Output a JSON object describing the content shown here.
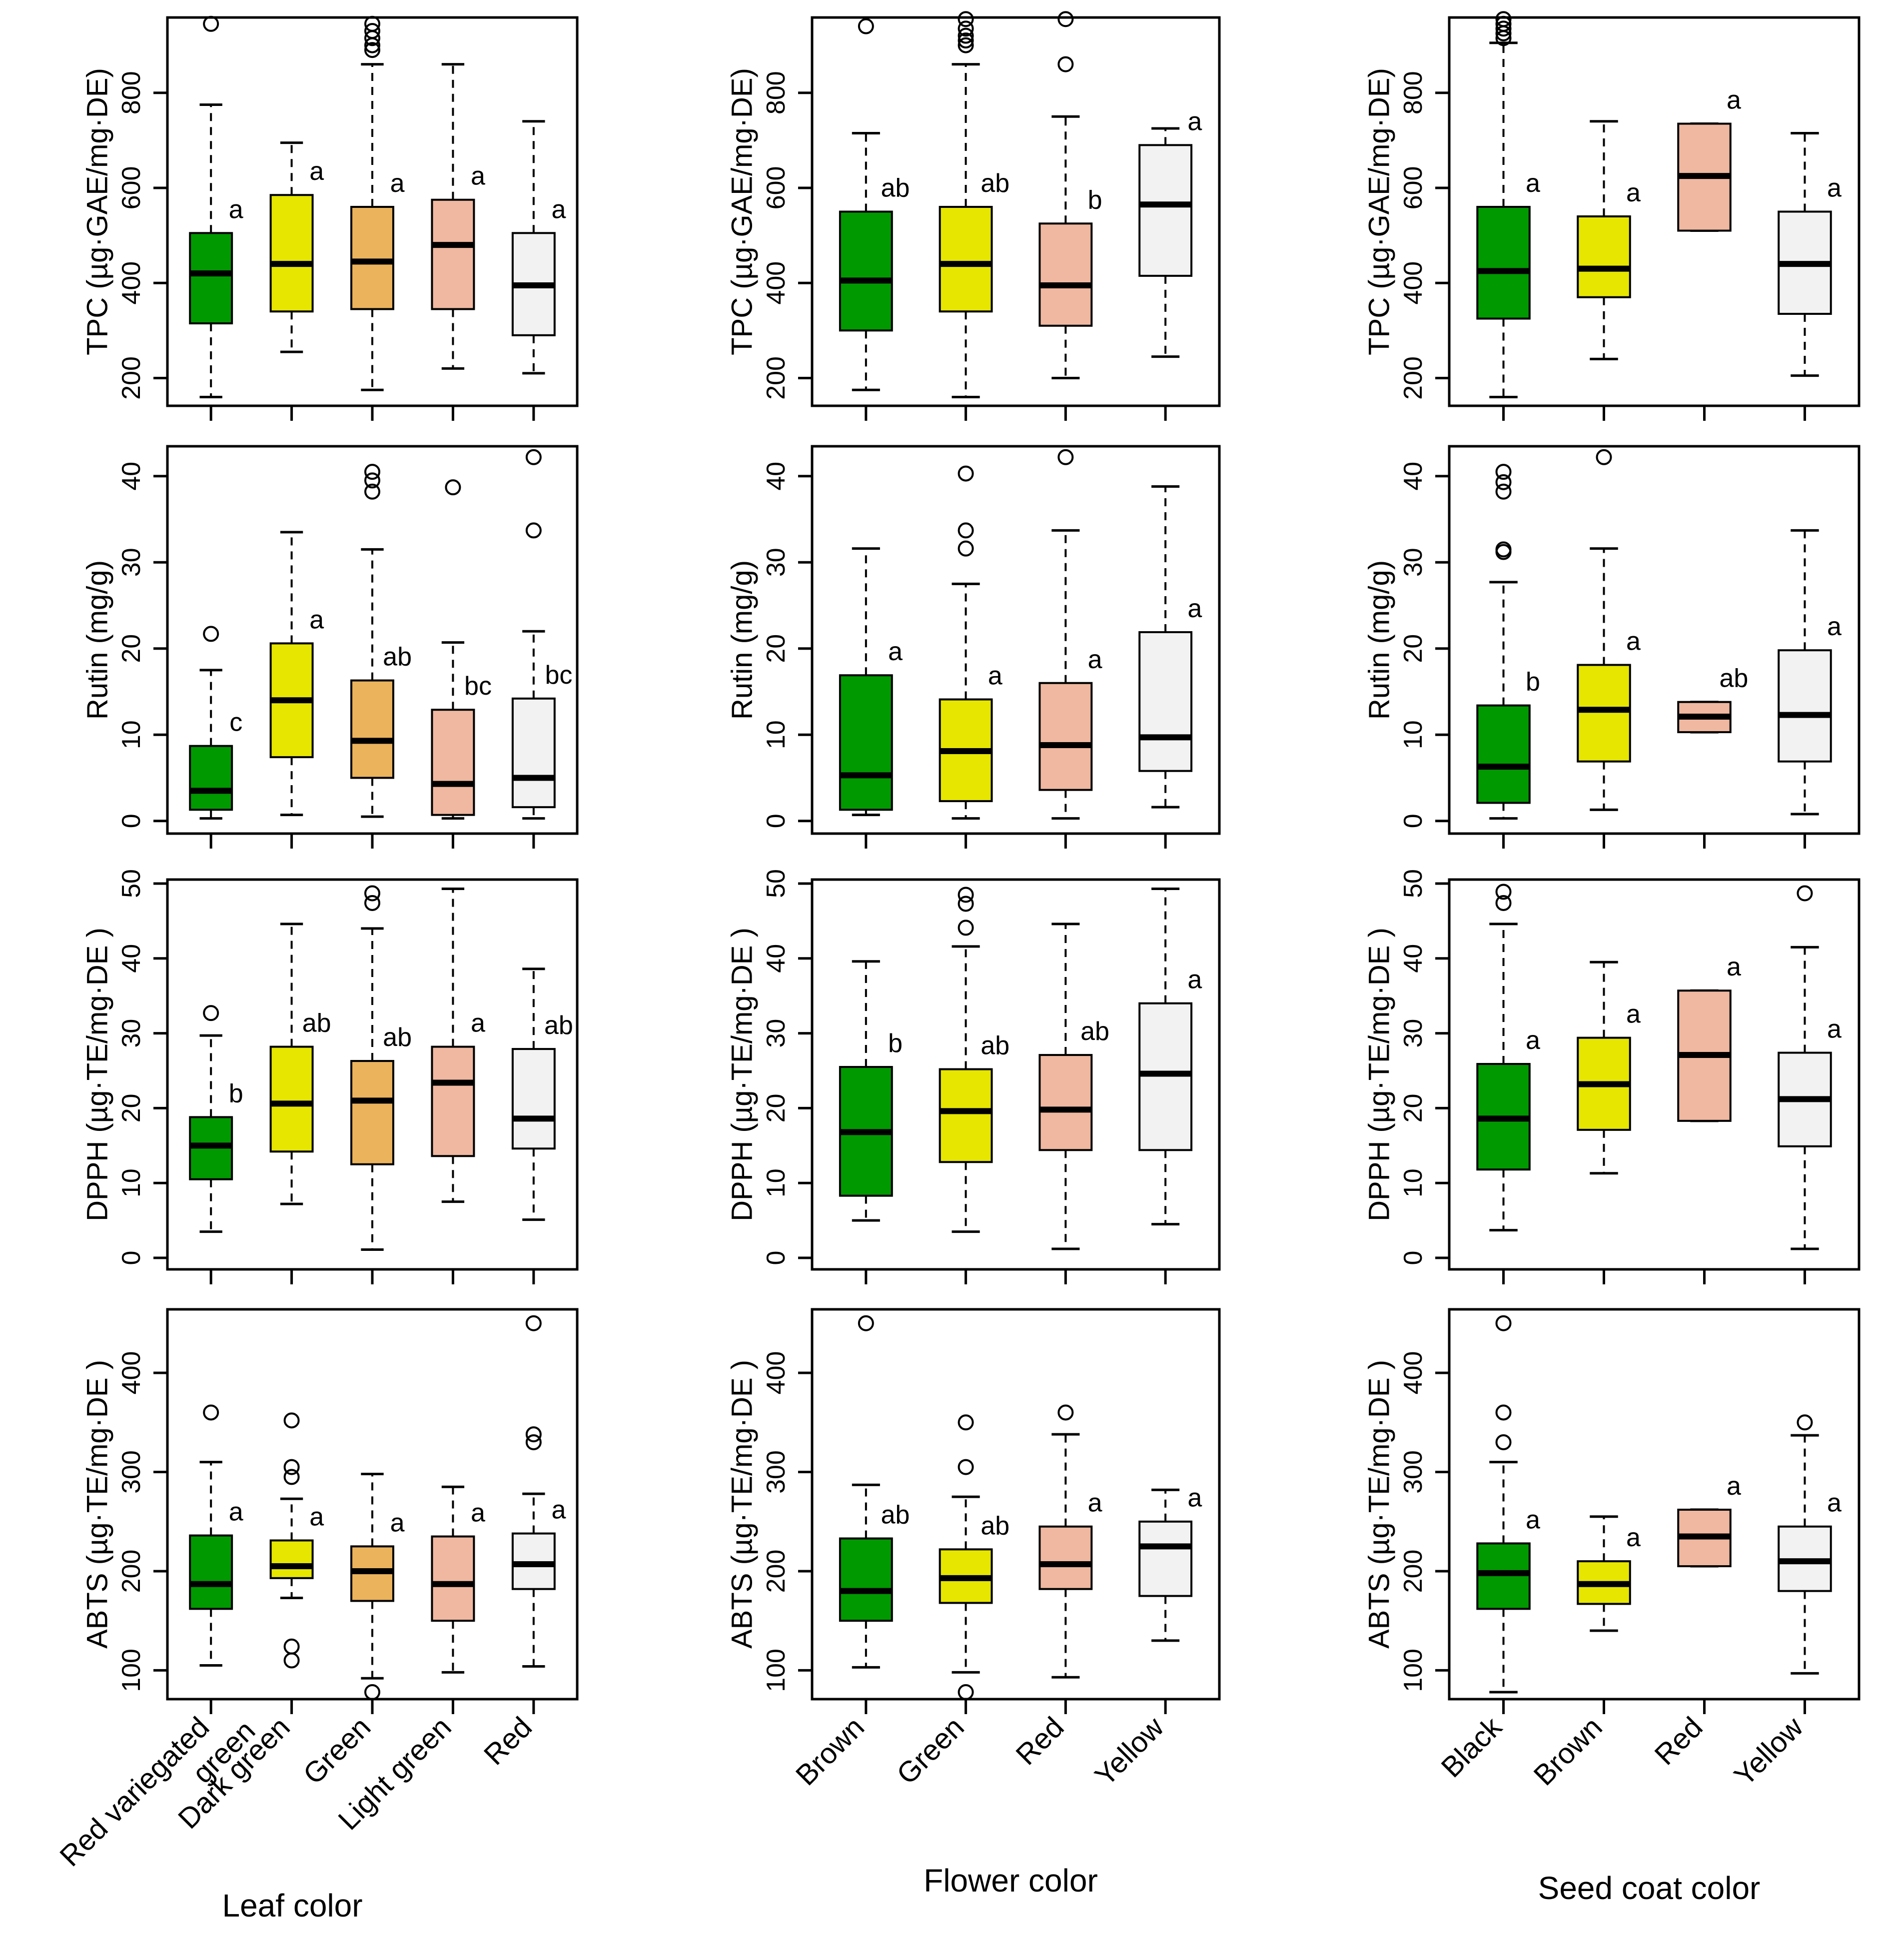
{
  "colors": {
    "box_fills": [
      "#009900",
      "#e6e600",
      "#ebb35c",
      "#f0b8a0",
      "#f2f2f2"
    ],
    "stroke": "#000000"
  },
  "columns": [
    {
      "key": "leaf",
      "title": "Leaf color",
      "categories": [
        "Red variegated green",
        "Dark green",
        "Green",
        "Light green",
        "Red"
      ],
      "fills": [
        0,
        1,
        2,
        3,
        4
      ]
    },
    {
      "key": "flower",
      "title": "Flower color",
      "categories": [
        "Brown",
        "Green",
        "Red",
        "Yellow"
      ],
      "fills": [
        0,
        1,
        3,
        4
      ]
    },
    {
      "key": "seed",
      "title": "Seed coat color",
      "categories": [
        "Black",
        "Brown",
        "Red",
        "Yellow"
      ],
      "fills": [
        0,
        1,
        3,
        4
      ]
    }
  ],
  "rows": [
    {
      "key": "tpc",
      "ylabel": "TPC (µg·GAE/mg·DE)",
      "ylim": [
        150,
        950
      ],
      "ticks": [
        200,
        400,
        600,
        800
      ]
    },
    {
      "key": "rutin",
      "ylabel": "Rutin (mg/g)",
      "ylim": [
        -1,
        43
      ],
      "ticks": [
        0,
        10,
        20,
        30,
        40
      ]
    },
    {
      "key": "dpph",
      "ylabel": "DPPH (µg·TE/mg·DE )",
      "ylim": [
        -1,
        50
      ],
      "ticks": [
        0,
        10,
        20,
        30,
        40,
        50
      ]
    },
    {
      "key": "abts",
      "ylabel": "ABTS (µg·TE/mg·DE )",
      "ylim": [
        75,
        460
      ],
      "ticks": [
        100,
        200,
        300,
        400
      ]
    }
  ],
  "chart_data": [
    {
      "type": "box",
      "row": "tpc",
      "column": "leaf",
      "categories": [
        "Red variegated green",
        "Dark green",
        "Green",
        "Light green",
        "Red"
      ],
      "boxes": [
        {
          "min": 160,
          "q1": 315,
          "median": 420,
          "q3": 505,
          "max": 775,
          "outliers": [
            945
          ],
          "letter": "a"
        },
        {
          "min": 255,
          "q1": 340,
          "median": 440,
          "q3": 585,
          "max": 695,
          "outliers": [],
          "letter": "a"
        },
        {
          "min": 175,
          "q1": 345,
          "median": 445,
          "q3": 560,
          "max": 860,
          "outliers": [
            890,
            900,
            915,
            930,
            945
          ],
          "letter": "a"
        },
        {
          "min": 220,
          "q1": 345,
          "median": 480,
          "q3": 575,
          "max": 860,
          "outliers": [],
          "letter": "a"
        },
        {
          "min": 210,
          "q1": 290,
          "median": 395,
          "q3": 505,
          "max": 740,
          "outliers": [],
          "letter": "a"
        }
      ]
    },
    {
      "type": "box",
      "row": "tpc",
      "column": "flower",
      "categories": [
        "Brown",
        "Green",
        "Red",
        "Yellow"
      ],
      "boxes": [
        {
          "min": 175,
          "q1": 300,
          "median": 405,
          "q3": 550,
          "max": 715,
          "outliers": [
            940
          ],
          "letter": "ab"
        },
        {
          "min": 160,
          "q1": 340,
          "median": 440,
          "q3": 560,
          "max": 860,
          "outliers": [
            900,
            910,
            920,
            935,
            955
          ],
          "letter": "ab"
        },
        {
          "min": 200,
          "q1": 310,
          "median": 395,
          "q3": 525,
          "max": 750,
          "outliers": [
            860,
            955
          ],
          "letter": "b"
        },
        {
          "min": 245,
          "q1": 415,
          "median": 565,
          "q3": 690,
          "max": 725,
          "outliers": [],
          "letter": "a"
        }
      ]
    },
    {
      "type": "box",
      "row": "tpc",
      "column": "seed",
      "categories": [
        "Black",
        "Brown",
        "Red",
        "Yellow"
      ],
      "boxes": [
        {
          "min": 160,
          "q1": 325,
          "median": 425,
          "q3": 560,
          "max": 905,
          "outliers": [
            915,
            925,
            935,
            945,
            955
          ],
          "letter": "a"
        },
        {
          "min": 240,
          "q1": 370,
          "median": 430,
          "q3": 540,
          "max": 740,
          "outliers": [],
          "letter": "a"
        },
        {
          "min": 510,
          "q1": 510,
          "median": 625,
          "q3": 735,
          "max": 735,
          "outliers": [],
          "letter": "a"
        },
        {
          "min": 205,
          "q1": 335,
          "median": 440,
          "q3": 550,
          "max": 715,
          "outliers": [],
          "letter": "a"
        }
      ]
    },
    {
      "type": "box",
      "row": "rutin",
      "column": "leaf",
      "categories": [
        "Red variegated green",
        "Dark green",
        "Green",
        "Light green",
        "Red"
      ],
      "boxes": [
        {
          "min": 0.3,
          "q1": 1.3,
          "median": 3.5,
          "q3": 8.7,
          "max": 17.5,
          "outliers": [
            21.7
          ],
          "letter": "c"
        },
        {
          "min": 0.7,
          "q1": 7.4,
          "median": 14,
          "q3": 20.6,
          "max": 33.5,
          "outliers": [],
          "letter": "a"
        },
        {
          "min": 0.5,
          "q1": 5,
          "median": 9.3,
          "q3": 16.3,
          "max": 31.5,
          "outliers": [
            38.2,
            39.5,
            40.5
          ],
          "letter": "ab"
        },
        {
          "min": 0.3,
          "q1": 0.7,
          "median": 4.3,
          "q3": 12.9,
          "max": 20.7,
          "outliers": [
            38.7
          ],
          "letter": "bc"
        },
        {
          "min": 0.3,
          "q1": 1.6,
          "median": 5,
          "q3": 14.2,
          "max": 22,
          "outliers": [
            33.7,
            42.2
          ],
          "letter": "bc"
        }
      ]
    },
    {
      "type": "box",
      "row": "rutin",
      "column": "flower",
      "categories": [
        "Brown",
        "Green",
        "Red",
        "Yellow"
      ],
      "boxes": [
        {
          "min": 0.7,
          "q1": 1.3,
          "median": 5.3,
          "q3": 16.9,
          "max": 31.6,
          "outliers": [],
          "letter": "a"
        },
        {
          "min": 0.3,
          "q1": 2.3,
          "median": 8.1,
          "q3": 14.1,
          "max": 27.5,
          "outliers": [
            31.6,
            33.7,
            40.3
          ],
          "letter": "a"
        },
        {
          "min": 0.3,
          "q1": 3.6,
          "median": 8.8,
          "q3": 16,
          "max": 33.7,
          "outliers": [
            42.2
          ],
          "letter": "a"
        },
        {
          "min": 1.6,
          "q1": 5.8,
          "median": 9.7,
          "q3": 21.9,
          "max": 38.8,
          "outliers": [],
          "letter": "a"
        }
      ]
    },
    {
      "type": "box",
      "row": "rutin",
      "column": "seed",
      "categories": [
        "Black",
        "Brown",
        "Red",
        "Yellow"
      ],
      "boxes": [
        {
          "min": 0.3,
          "q1": 2.1,
          "median": 6.3,
          "q3": 13.4,
          "max": 27.7,
          "outliers": [
            31.2,
            31.5,
            38.2,
            39.3,
            40.5
          ],
          "letter": "b"
        },
        {
          "min": 1.3,
          "q1": 6.9,
          "median": 12.9,
          "q3": 18.1,
          "max": 31.6,
          "outliers": [
            42.2
          ],
          "letter": "a"
        },
        {
          "min": 10.3,
          "q1": 10.3,
          "median": 12.1,
          "q3": 13.8,
          "max": 13.8,
          "outliers": [],
          "letter": "ab"
        },
        {
          "min": 0.8,
          "q1": 6.9,
          "median": 12.3,
          "q3": 19.8,
          "max": 33.7,
          "outliers": [],
          "letter": "a"
        }
      ]
    },
    {
      "type": "box",
      "row": "dpph",
      "column": "leaf",
      "categories": [
        "Red variegated green",
        "Dark green",
        "Green",
        "Light green",
        "Red"
      ],
      "boxes": [
        {
          "min": 3.5,
          "q1": 10.5,
          "median": 15,
          "q3": 18.8,
          "max": 29.7,
          "outliers": [
            32.7
          ],
          "letter": "b"
        },
        {
          "min": 7.2,
          "q1": 14.2,
          "median": 20.6,
          "q3": 28.2,
          "max": 44.6,
          "outliers": [],
          "letter": "ab"
        },
        {
          "min": 1.1,
          "q1": 12.5,
          "median": 21,
          "q3": 26.3,
          "max": 44,
          "outliers": [
            47.4,
            48.7
          ],
          "letter": "ab"
        },
        {
          "min": 7.5,
          "q1": 13.6,
          "median": 23.4,
          "q3": 28.2,
          "max": 49.3,
          "outliers": [],
          "letter": "a"
        },
        {
          "min": 5.1,
          "q1": 14.6,
          "median": 18.6,
          "q3": 27.9,
          "max": 38.6,
          "outliers": [],
          "letter": "ab"
        }
      ]
    },
    {
      "type": "box",
      "row": "dpph",
      "column": "flower",
      "categories": [
        "Brown",
        "Green",
        "Red",
        "Yellow"
      ],
      "boxes": [
        {
          "min": 5,
          "q1": 8.3,
          "median": 16.8,
          "q3": 25.5,
          "max": 39.6,
          "outliers": [],
          "letter": "b"
        },
        {
          "min": 3.5,
          "q1": 12.8,
          "median": 19.6,
          "q3": 25.2,
          "max": 41.6,
          "outliers": [
            44.1,
            47.3,
            48.5
          ],
          "letter": "ab"
        },
        {
          "min": 1.2,
          "q1": 14.4,
          "median": 19.8,
          "q3": 27.1,
          "max": 44.6,
          "outliers": [],
          "letter": "ab"
        },
        {
          "min": 4.5,
          "q1": 14.4,
          "median": 24.6,
          "q3": 34,
          "max": 49.3,
          "outliers": [],
          "letter": "a"
        }
      ]
    },
    {
      "type": "box",
      "row": "dpph",
      "column": "seed",
      "categories": [
        "Black",
        "Brown",
        "Red",
        "Yellow"
      ],
      "boxes": [
        {
          "min": 3.7,
          "q1": 11.8,
          "median": 18.6,
          "q3": 25.9,
          "max": 44.6,
          "outliers": [
            47.4,
            48.9
          ],
          "letter": "a"
        },
        {
          "min": 11.3,
          "q1": 17.1,
          "median": 23.2,
          "q3": 29.4,
          "max": 39.5,
          "outliers": [],
          "letter": "a"
        },
        {
          "min": 18.3,
          "q1": 18.3,
          "median": 27.1,
          "q3": 35.7,
          "max": 35.7,
          "outliers": [],
          "letter": "a"
        },
        {
          "min": 1.2,
          "q1": 14.9,
          "median": 21.2,
          "q3": 27.4,
          "max": 41.5,
          "outliers": [
            48.7
          ],
          "letter": "a"
        }
      ]
    },
    {
      "type": "box",
      "row": "abts",
      "column": "leaf",
      "categories": [
        "Red variegated green",
        "Dark green",
        "Green",
        "Light green",
        "Red"
      ],
      "boxes": [
        {
          "min": 105,
          "q1": 162,
          "median": 187,
          "q3": 236,
          "max": 310,
          "outliers": [
            360
          ],
          "letter": "a"
        },
        {
          "min": 173,
          "q1": 193,
          "median": 205,
          "q3": 231,
          "max": 273,
          "outliers": [
            110,
            124,
            295,
            305,
            352
          ],
          "letter": "a"
        },
        {
          "min": 92,
          "q1": 170,
          "median": 200,
          "q3": 225,
          "max": 298,
          "outliers": [
            78
          ],
          "letter": "a"
        },
        {
          "min": 98,
          "q1": 150,
          "median": 187,
          "q3": 235,
          "max": 285,
          "outliers": [],
          "letter": "a"
        },
        {
          "min": 104,
          "q1": 182,
          "median": 207,
          "q3": 238,
          "max": 278,
          "outliers": [
            330,
            338,
            450
          ],
          "letter": "a"
        }
      ]
    },
    {
      "type": "box",
      "row": "abts",
      "column": "flower",
      "categories": [
        "Brown",
        "Green",
        "Red",
        "Yellow"
      ],
      "boxes": [
        {
          "min": 103,
          "q1": 150,
          "median": 180,
          "q3": 233,
          "max": 287,
          "outliers": [
            450
          ],
          "letter": "ab"
        },
        {
          "min": 98,
          "q1": 168,
          "median": 193,
          "q3": 222,
          "max": 275,
          "outliers": [
            78,
            305,
            350
          ],
          "letter": "ab"
        },
        {
          "min": 93,
          "q1": 182,
          "median": 207,
          "q3": 245,
          "max": 338,
          "outliers": [
            360
          ],
          "letter": "a"
        },
        {
          "min": 130,
          "q1": 175,
          "median": 225,
          "q3": 250,
          "max": 282,
          "outliers": [],
          "letter": "a"
        }
      ]
    },
    {
      "type": "box",
      "row": "abts",
      "column": "seed",
      "categories": [
        "Black",
        "Brown",
        "Red",
        "Yellow"
      ],
      "boxes": [
        {
          "min": 78,
          "q1": 162,
          "median": 198,
          "q3": 228,
          "max": 310,
          "outliers": [
            330,
            360,
            450
          ],
          "letter": "a"
        },
        {
          "min": 140,
          "q1": 167,
          "median": 187,
          "q3": 210,
          "max": 255,
          "outliers": [],
          "letter": "a"
        },
        {
          "min": 205,
          "q1": 205,
          "median": 235,
          "q3": 262,
          "max": 262,
          "outliers": [],
          "letter": "a"
        },
        {
          "min": 97,
          "q1": 180,
          "median": 210,
          "q3": 245,
          "max": 337,
          "outliers": [
            350
          ],
          "letter": "a"
        }
      ]
    }
  ]
}
